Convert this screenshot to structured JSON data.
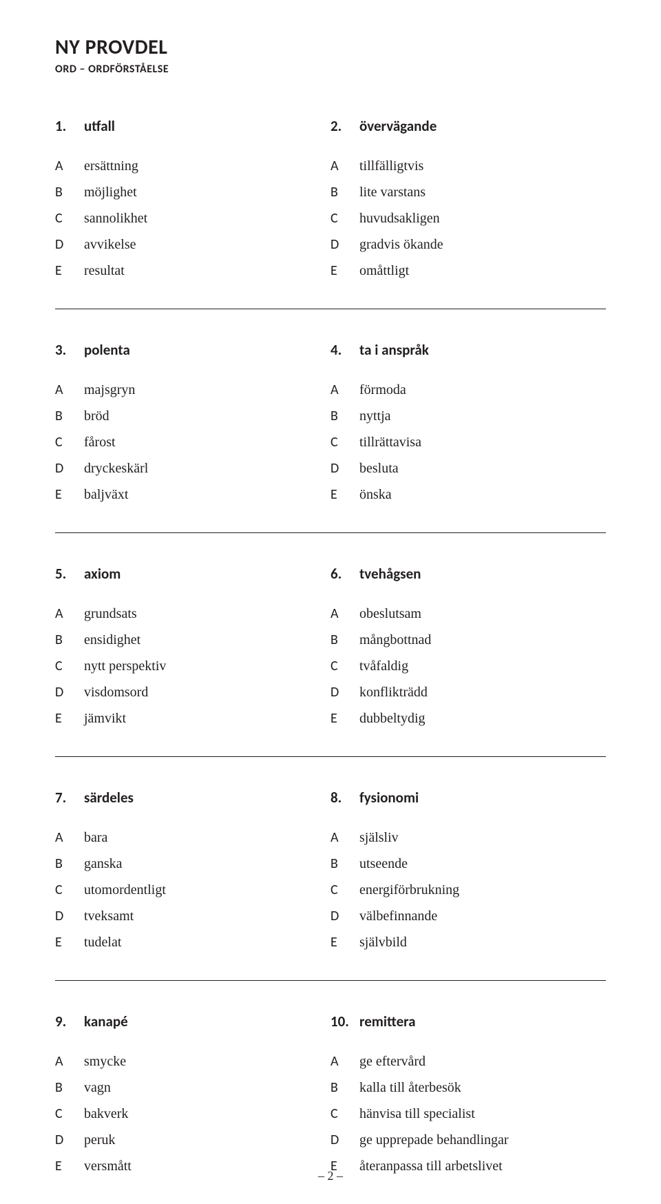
{
  "header": {
    "title": "NY PROVDEL",
    "subtitle": "ORD – ORDFÖRSTÅELSE"
  },
  "option_letters": [
    "A",
    "B",
    "C",
    "D",
    "E"
  ],
  "questions": [
    {
      "num": "1.",
      "word": "utfall",
      "options": [
        "ersättning",
        "möjlighet",
        "sannolikhet",
        "avvikelse",
        "resultat"
      ]
    },
    {
      "num": "2.",
      "word": "övervägande",
      "options": [
        "tillfälligtvis",
        "lite varstans",
        "huvudsakligen",
        "gradvis ökande",
        "omåttligt"
      ]
    },
    {
      "num": "3.",
      "word": "polenta",
      "options": [
        "majsgryn",
        "bröd",
        "fårost",
        "dryckeskärl",
        "baljväxt"
      ]
    },
    {
      "num": "4.",
      "word": "ta i anspråk",
      "options": [
        "förmoda",
        "nyttja",
        "tillrättavisa",
        "besluta",
        "önska"
      ]
    },
    {
      "num": "5.",
      "word": "axiom",
      "options": [
        "grundsats",
        "ensidighet",
        "nytt perspektiv",
        "visdomsord",
        "jämvikt"
      ]
    },
    {
      "num": "6.",
      "word": "tvehågsen",
      "options": [
        "obeslutsam",
        "mångbottnad",
        "tvåfaldig",
        "konflikträdd",
        "dubbeltydig"
      ]
    },
    {
      "num": "7.",
      "word": "särdeles",
      "options": [
        "bara",
        "ganska",
        "utomordentligt",
        "tveksamt",
        "tudelat"
      ]
    },
    {
      "num": "8.",
      "word": "fysionomi",
      "options": [
        "själsliv",
        "utseende",
        "energiförbrukning",
        "välbefinnande",
        "självbild"
      ]
    },
    {
      "num": "9.",
      "word": "kanapé",
      "options": [
        "smycke",
        "vagn",
        "bakverk",
        "peruk",
        "versmått"
      ]
    },
    {
      "num": "10.",
      "word": "remittera",
      "options": [
        "ge eftervård",
        "kalla till återbesök",
        "hänvisa till specialist",
        "ge upprepade behandlingar",
        "återanpassa till arbetslivet"
      ]
    }
  ],
  "page_number": "– 2 –"
}
